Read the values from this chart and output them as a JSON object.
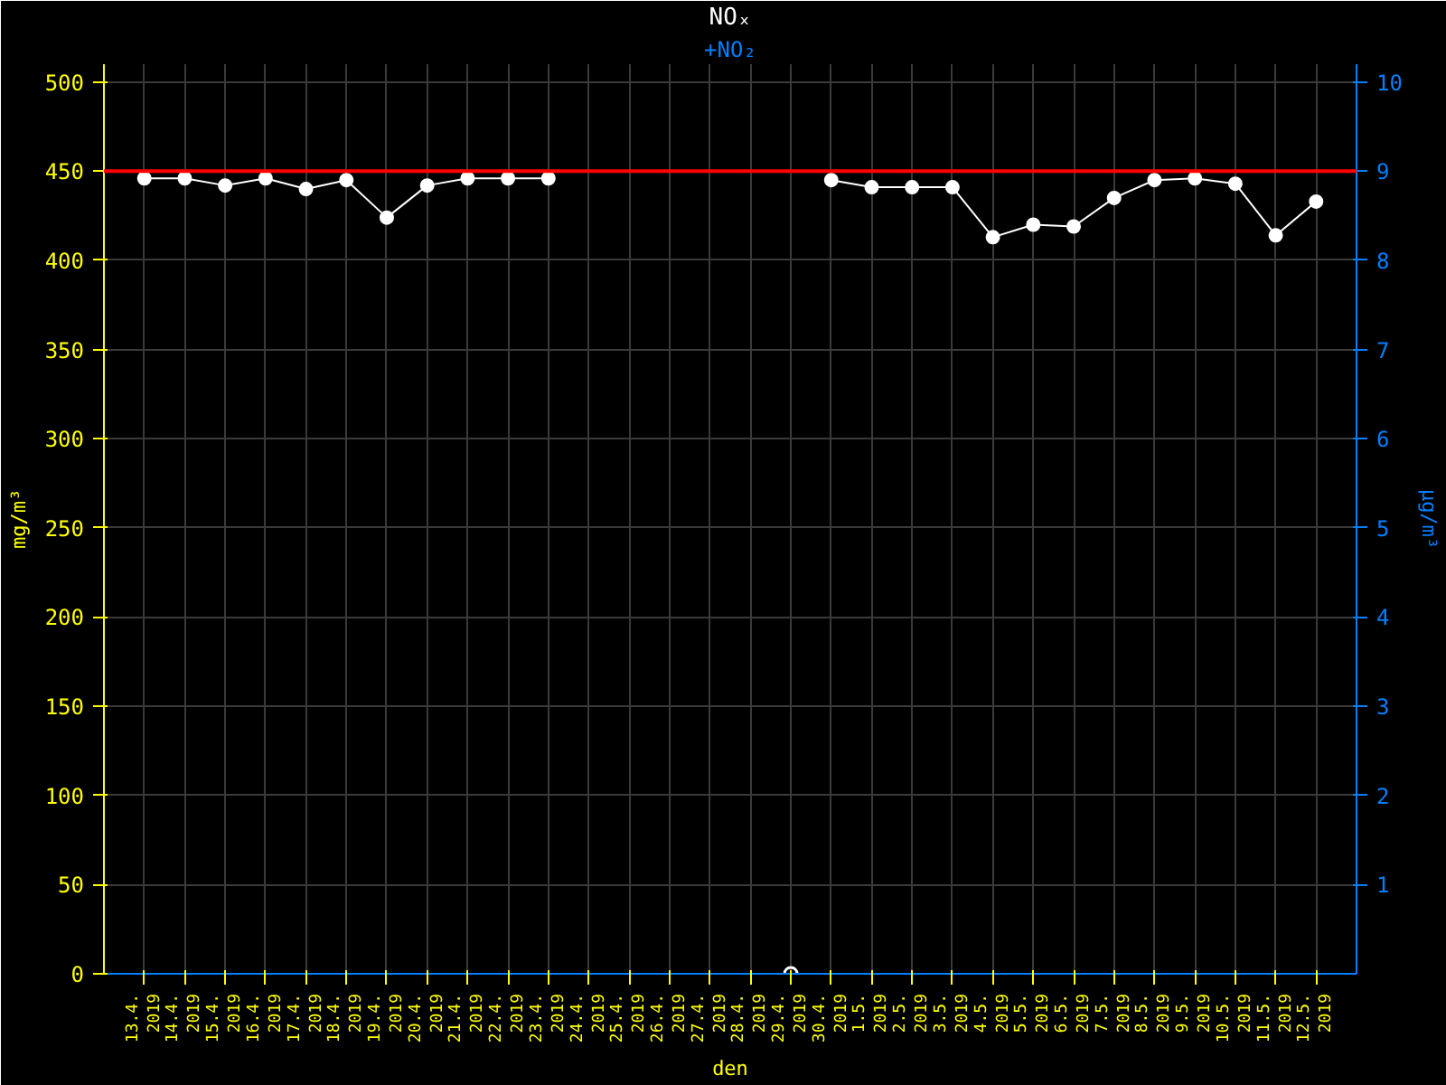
{
  "chart_data": {
    "type": "line",
    "title": "NOₓ",
    "subtitle": "+NO₂",
    "xlabel": "den",
    "ylabel": "mg/m³",
    "y2label": "µg/m³",
    "categories": [
      "13.4.\n2019",
      "14.4.\n2019",
      "15.4.\n2019",
      "16.4.\n2019",
      "17.4.\n2019",
      "18.4.\n2019",
      "19.4.\n2019",
      "20.4.\n2019",
      "21.4.\n2019",
      "22.4.\n2019",
      "23.4.\n2019",
      "24.4.\n2019",
      "25.4.\n2019",
      "26.4.\n2019",
      "27.4.\n2019",
      "28.4.\n2019",
      "29.4.\n2019",
      "30.4.\n2019",
      "1.5.\n2019",
      "2.5.\n2019",
      "3.5.\n2019",
      "4.5.\n2019",
      "5.5.\n2019",
      "6.5.\n2019",
      "7.5.\n2019",
      "8.5.\n2019",
      "9.5.\n2019",
      "10.5.\n2019",
      "11.5.\n2019",
      "12.5.\n2019"
    ],
    "series": [
      {
        "color": "#ffffff",
        "values": [
          446,
          446,
          442,
          446,
          440,
          445,
          424,
          442,
          446,
          446,
          446,
          null,
          null,
          null,
          null,
          null,
          null,
          445,
          441,
          441,
          441,
          413,
          420,
          419,
          435,
          445,
          446,
          443,
          414,
          433
        ]
      },
      {
        "type": "scatter",
        "color": "#ffffff",
        "x": [
          "29.4.\n2019"
        ],
        "values": [
          0
        ]
      }
    ],
    "ylim": [
      0,
      510
    ],
    "yticks": [
      0,
      50,
      100,
      150,
      200,
      250,
      300,
      350,
      400,
      450,
      500
    ],
    "y2lim": [
      0,
      10.2
    ],
    "y2ticks": [
      1,
      2,
      3,
      4,
      5,
      6,
      7,
      8,
      9,
      10
    ],
    "ref_lines": [
      {
        "axis": "y",
        "value": 450,
        "color": "#ff0000"
      }
    ],
    "grid": true,
    "marker": "circle",
    "line_style": "solid"
  }
}
